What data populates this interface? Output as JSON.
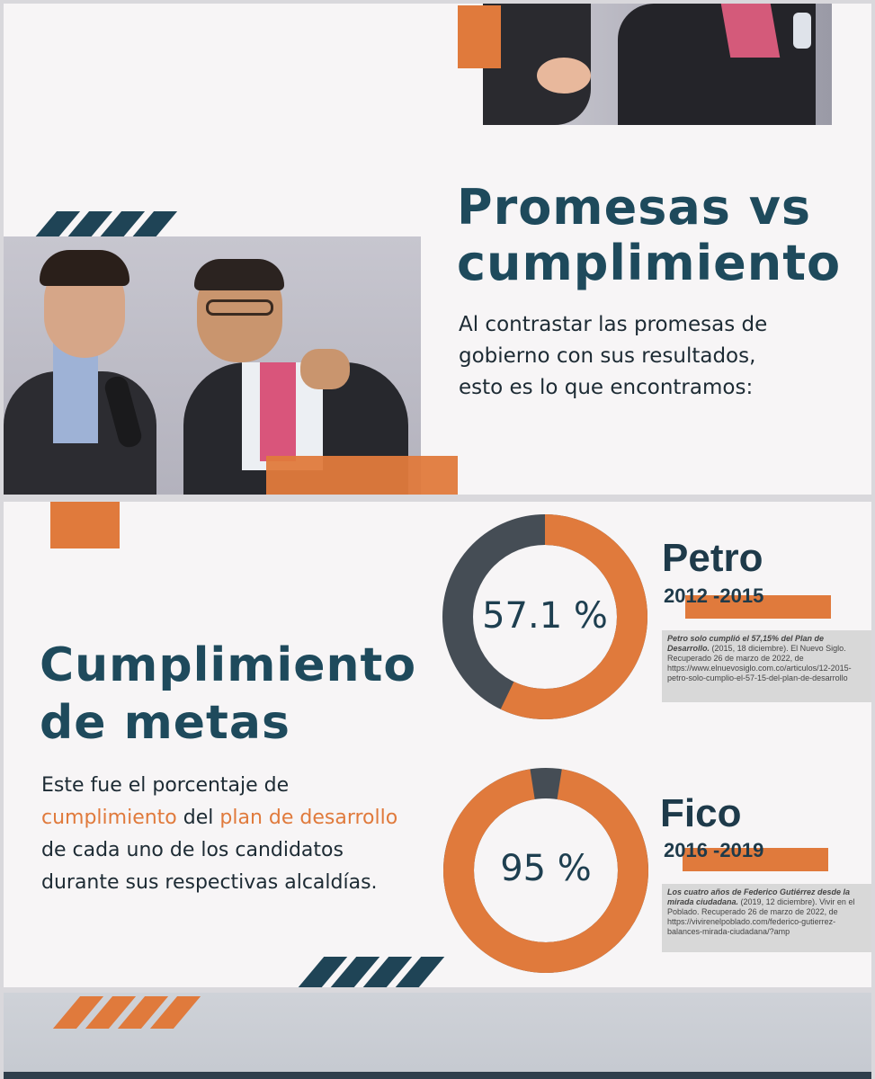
{
  "slide1": {
    "title_line1": "Promesas vs",
    "title_line2": "cumplimiento",
    "subtitle_line1": "Al contrastar las promesas de",
    "subtitle_line2": "gobierno con sus resultados,",
    "subtitle_line3": "esto es lo que encontramos:"
  },
  "slide2": {
    "title_line1": "Cumplimiento",
    "title_line2": "de metas",
    "desc_line1": "Este fue el porcentaje de",
    "desc_line2_hl1": "cumplimiento",
    "desc_line2_mid": " del ",
    "desc_line2_hl2": "plan de desarrollo",
    "desc_line3": "de cada uno de los candidatos",
    "desc_line4": "durante sus respectivas alcaldías.",
    "candidates": [
      {
        "name": "Petro",
        "years": "2012 -2015",
        "percent_label": "57.1 %",
        "percent_value": 57.1,
        "citation_title": "Petro solo cumplió el 57,15% del Plan de Desarrollo.",
        "citation_body": "(2015, 18 diciembre). El Nuevo Siglo. Recuperado 26 de marzo de 2022, de https://www.elnuevosiglo.com.co/articulos/12-2015-petro-solo-cumplio-el-57-15-del-plan-de-desarrollo"
      },
      {
        "name": "Fico",
        "years": "2016 -2019",
        "percent_label": "95 %",
        "percent_value": 95,
        "citation_title": "Los cuatro años de Federico Gutiérrez desde la mirada ciudadana.",
        "citation_body": "(2019, 12 diciembre). Vivir en el Poblado. Recuperado 26 de marzo de 2022, de https://vivirenelpoblado.com/federico-gutierrez-balances-mirada-ciudadana/?amp"
      }
    ]
  },
  "colors": {
    "accent": "#e07a3c",
    "navy": "#1e4a5c",
    "ring_track": "#454d55"
  }
}
